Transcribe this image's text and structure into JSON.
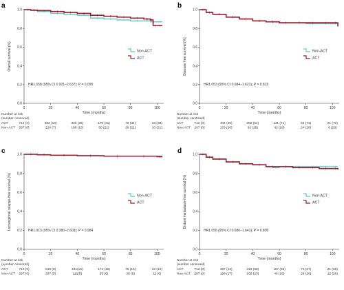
{
  "chart_data": [
    {
      "type": "line",
      "panel": "a",
      "ylabel": "Overall survival (%)",
      "xlabel": "Time (months)",
      "xlim": [
        0,
        105
      ],
      "ylim": [
        0.0,
        1.0
      ],
      "x_ticks": [
        "0",
        "20",
        "40",
        "60",
        "80",
        "100"
      ],
      "y_ticks": [
        "0.0",
        "0.2",
        "0.4",
        "0.6",
        "0.8",
        "1.0"
      ],
      "legend_position": "right",
      "annotation": "HR1.558 (95% CI 0.921–2.637); P = 0.095",
      "series": [
        {
          "name": "Non-ACT",
          "color": "#5cc8c8",
          "x": [
            0,
            5,
            10,
            20,
            30,
            40,
            50,
            60,
            70,
            80,
            90,
            95,
            100,
            104
          ],
          "y": [
            1.0,
            0.99,
            0.98,
            0.96,
            0.95,
            0.94,
            0.91,
            0.9,
            0.89,
            0.88,
            0.88,
            0.87,
            0.87,
            0.87
          ]
        },
        {
          "name": "ACT",
          "color": "#9b1c2a",
          "x": [
            0,
            5,
            10,
            20,
            30,
            40,
            50,
            60,
            70,
            80,
            90,
            95,
            97,
            100,
            104
          ],
          "y": [
            1.0,
            0.995,
            0.99,
            0.98,
            0.97,
            0.96,
            0.94,
            0.93,
            0.92,
            0.91,
            0.9,
            0.89,
            0.83,
            0.83,
            0.83
          ]
        }
      ],
      "risk_table": {
        "title": "Number at risk\n(number censored)",
        "rows": [
          {
            "label": "ACT",
            "values": [
              "712 (0)",
              "502 (10)",
              "335 (25)",
              "176 (31)",
              "79 (34)",
              "23 (38)"
            ]
          },
          {
            "label": "Non-ACT",
            "values": [
              "297 (0)",
              "210 (7)",
              "108 (15)",
              "50 (21)",
              "29 (21)",
              "10 (21)"
            ]
          }
        ]
      }
    },
    {
      "type": "line",
      "panel": "b",
      "ylabel": "Disease free survival (%)",
      "xlabel": "Time (months)",
      "xlim": [
        0,
        105
      ],
      "ylim": [
        0.0,
        1.0
      ],
      "x_ticks": [
        "0",
        "20",
        "40",
        "60",
        "80",
        "100"
      ],
      "y_ticks": [
        "0.0",
        "0.2",
        "0.4",
        "0.6",
        "0.8",
        "1.0"
      ],
      "legend_position": "right",
      "annotation": "HR1.053 (95% CI 0.684–1.621); P = 0.815",
      "series": [
        {
          "name": "Non-ACT",
          "color": "#5cc8c8",
          "x": [
            0,
            5,
            10,
            20,
            30,
            40,
            50,
            60,
            70,
            80,
            90,
            100,
            104
          ],
          "y": [
            1.0,
            0.97,
            0.95,
            0.92,
            0.9,
            0.88,
            0.87,
            0.86,
            0.86,
            0.85,
            0.85,
            0.85,
            0.84
          ]
        },
        {
          "name": "ACT",
          "color": "#9b1c2a",
          "x": [
            0,
            5,
            10,
            20,
            30,
            40,
            50,
            60,
            70,
            80,
            90,
            100,
            104
          ],
          "y": [
            1.0,
            0.97,
            0.95,
            0.92,
            0.9,
            0.88,
            0.87,
            0.86,
            0.86,
            0.86,
            0.86,
            0.86,
            0.82
          ]
        }
      ],
      "risk_table": {
        "title": "Number at risk\n(number censored)",
        "rows": [
          {
            "label": "ACT",
            "values": [
              "712 (0)",
              "444 (40)",
              "292 (54)",
              "141 (71)",
              "64 (71)",
              "21 (72)"
            ]
          },
          {
            "label": "Non-ACT",
            "values": [
              "297 (0)",
              "179 (20)",
              "92 (26)",
              "42 (28)",
              "24 (28)",
              "9 (28)"
            ]
          }
        ]
      }
    },
    {
      "type": "line",
      "panel": "c",
      "ylabel": "Locoregional relapse-free survival (%)",
      "xlabel": "Time (months)",
      "xlim": [
        0,
        105
      ],
      "ylim": [
        0.0,
        1.0
      ],
      "x_ticks": [
        "0",
        "20",
        "40",
        "60",
        "80",
        "100"
      ],
      "y_ticks": [
        "0.0",
        "0.2",
        "0.4",
        "0.6",
        "0.8",
        "1.0"
      ],
      "legend_position": "right",
      "annotation": "HR1.013 (95% CI 0.380–2.603); P = 0.984",
      "series": [
        {
          "name": "Non-ACT",
          "color": "#5cc8c8",
          "x": [
            0,
            10,
            20,
            40,
            60,
            80,
            100,
            104
          ],
          "y": [
            1.0,
            0.995,
            0.99,
            0.985,
            0.98,
            0.98,
            0.98,
            0.98
          ]
        },
        {
          "name": "ACT",
          "color": "#9b1c2a",
          "x": [
            0,
            10,
            20,
            40,
            60,
            80,
            100,
            104
          ],
          "y": [
            1.0,
            0.995,
            0.99,
            0.985,
            0.98,
            0.98,
            0.975,
            0.975
          ]
        }
      ],
      "risk_table": {
        "title": "Number at risk\n(number censored)",
        "rows": [
          {
            "label": "ACT",
            "values": [
              "712 (0)",
              "519 (8)",
              "331(15)",
              "174 (15)",
              "79 (15)",
              "22 (15)"
            ]
          },
          {
            "label": "Non-ACT",
            "values": [
              "297 (0)",
              "207 (5)",
              "112(5)",
              "53 (6)",
              "30 (6)",
              "11 (6)"
            ]
          }
        ]
      }
    },
    {
      "type": "line",
      "panel": "d",
      "ylabel": "Distant metastasis-free survival (%)",
      "xlabel": "Time (months)",
      "xlim": [
        0,
        105
      ],
      "ylim": [
        0.0,
        1.0
      ],
      "x_ticks": [
        "0",
        "20",
        "40",
        "60",
        "80",
        "100"
      ],
      "y_ticks": [
        "0.0",
        "0.2",
        "0.4",
        "0.6",
        "0.8",
        "1.0"
      ],
      "legend_position": "right",
      "annotation": "HR1.056 (95% CI 0.680–1.641); P = 0.809",
      "series": [
        {
          "name": "Non-ACT",
          "color": "#5cc8c8",
          "x": [
            0,
            5,
            10,
            20,
            30,
            40,
            50,
            55,
            60,
            70,
            80,
            90,
            100,
            104
          ],
          "y": [
            1.0,
            0.97,
            0.95,
            0.92,
            0.9,
            0.89,
            0.87,
            0.86,
            0.87,
            0.87,
            0.87,
            0.87,
            0.87,
            0.87
          ]
        },
        {
          "name": "ACT",
          "color": "#9b1c2a",
          "x": [
            0,
            5,
            10,
            20,
            30,
            40,
            50,
            60,
            70,
            80,
            90,
            100,
            104
          ],
          "y": [
            1.0,
            0.97,
            0.95,
            0.92,
            0.9,
            0.89,
            0.87,
            0.87,
            0.86,
            0.86,
            0.85,
            0.85,
            0.84
          ]
        }
      ],
      "risk_table": {
        "title": "Number at risk\n(number censored)",
        "rows": [
          {
            "label": "ACT",
            "values": [
              "712 (0)",
              "497 (42)",
              "319 (58)",
              "167 (66)",
              "74 (67)",
              "21 (68)"
            ]
          },
          {
            "label": "Non-ACT",
            "values": [
              "297 (0)",
              "199 (17)",
              "105 (23)",
              "46 (26)",
              "28 (26)",
              "12 (26)"
            ]
          }
        ]
      }
    }
  ]
}
